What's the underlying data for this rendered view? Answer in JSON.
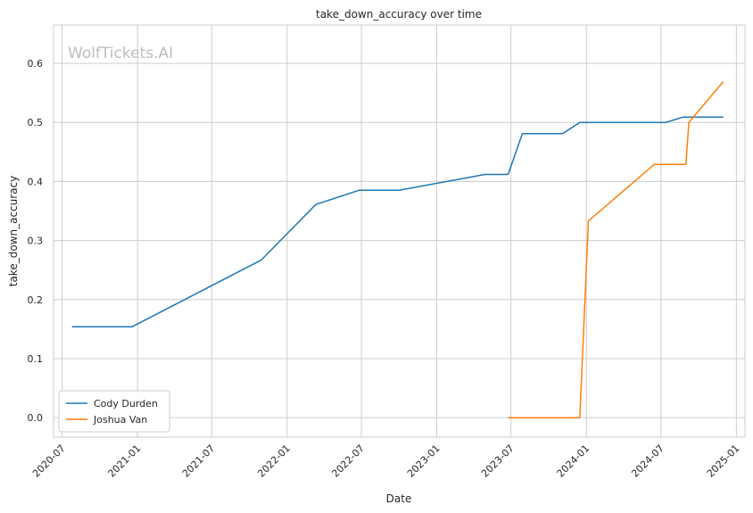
{
  "chart_data": {
    "type": "line",
    "title": "take_down_accuracy over time",
    "xlabel": "Date",
    "ylabel": "take_down_accuracy",
    "watermark": "WolfTickets.AI",
    "x_ticks": [
      "2020-07",
      "2021-01",
      "2021-07",
      "2022-01",
      "2022-07",
      "2023-01",
      "2023-07",
      "2024-01",
      "2024-07",
      "2025-01"
    ],
    "y_ticks": [
      "0.0",
      "0.1",
      "0.2",
      "0.3",
      "0.4",
      "0.5",
      "0.6"
    ],
    "ylim": [
      -0.033,
      0.665
    ],
    "xlim": [
      "2020-06-10",
      "2025-01-22"
    ],
    "grid": true,
    "legend_position": "lower-left",
    "series": [
      {
        "name": "Cody Durden",
        "color": "#1f77b4",
        "points": [
          {
            "x": "2020-07-25",
            "y": 0.154
          },
          {
            "x": "2020-12-19",
            "y": 0.154
          },
          {
            "x": "2021-10-30",
            "y": 0.267
          },
          {
            "x": "2022-03-12",
            "y": 0.361
          },
          {
            "x": "2022-06-25",
            "y": 0.385
          },
          {
            "x": "2022-10-01",
            "y": 0.385
          },
          {
            "x": "2023-04-29",
            "y": 0.412
          },
          {
            "x": "2023-06-24",
            "y": 0.412
          },
          {
            "x": "2023-07-29",
            "y": 0.481
          },
          {
            "x": "2023-11-04",
            "y": 0.481
          },
          {
            "x": "2023-12-16",
            "y": 0.5
          },
          {
            "x": "2024-07-13",
            "y": 0.5
          },
          {
            "x": "2024-08-24",
            "y": 0.509
          },
          {
            "x": "2024-11-30",
            "y": 0.509
          }
        ]
      },
      {
        "name": "Joshua Van",
        "color": "#ff7f0e",
        "points": [
          {
            "x": "2023-06-24",
            "y": 0.0
          },
          {
            "x": "2023-12-16",
            "y": 0.0
          },
          {
            "x": "2024-01-06",
            "y": 0.333
          },
          {
            "x": "2024-06-15",
            "y": 0.429
          },
          {
            "x": "2024-08-31",
            "y": 0.429
          },
          {
            "x": "2024-09-07",
            "y": 0.5
          },
          {
            "x": "2024-11-30",
            "y": 0.569
          }
        ]
      }
    ]
  }
}
